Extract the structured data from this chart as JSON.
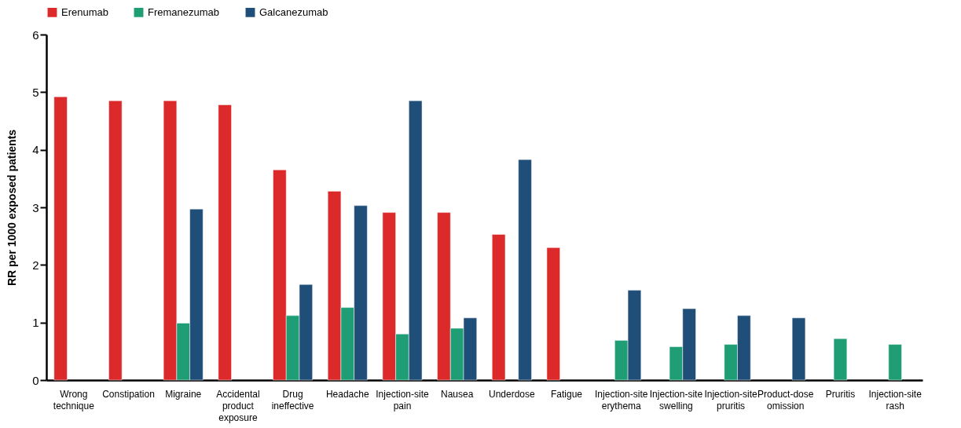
{
  "chart_data": {
    "type": "bar",
    "ylabel": "RR per 1000 exposed patients",
    "categories": [
      "Wrong technique",
      "Constipation",
      "Migraine",
      "Accidental product exposure",
      "Drug ineffective",
      "Headache",
      "Injection-site pain",
      "Nausea",
      "Underdose",
      "Fatigue",
      "Injection-site erythema",
      "Injection-site swelling",
      "Injection-site pruritis",
      "Product-dose omission",
      "Pruritis",
      "Injection-site rash"
    ],
    "series": [
      {
        "name": "Erenumab",
        "color": "#dc2a2a",
        "values": [
          4.92,
          4.85,
          4.85,
          4.78,
          3.65,
          3.28,
          2.91,
          2.91,
          2.53,
          2.3,
          null,
          null,
          null,
          null,
          null,
          null
        ]
      },
      {
        "name": "Fremanezumab",
        "color": "#1f9e75",
        "values": [
          null,
          null,
          0.99,
          null,
          1.12,
          1.26,
          0.8,
          0.9,
          null,
          null,
          0.69,
          0.58,
          0.62,
          null,
          0.72,
          0.62
        ]
      },
      {
        "name": "Galcanezumab",
        "color": "#1f4e79",
        "values": [
          null,
          null,
          2.97,
          null,
          1.66,
          3.03,
          4.85,
          1.08,
          3.83,
          null,
          1.56,
          1.24,
          1.12,
          1.08,
          null,
          null
        ]
      }
    ],
    "ylim": [
      0,
      6
    ],
    "yticks": [
      0,
      1,
      2,
      3,
      4,
      5,
      6
    ],
    "grid": false,
    "legend": "top"
  }
}
